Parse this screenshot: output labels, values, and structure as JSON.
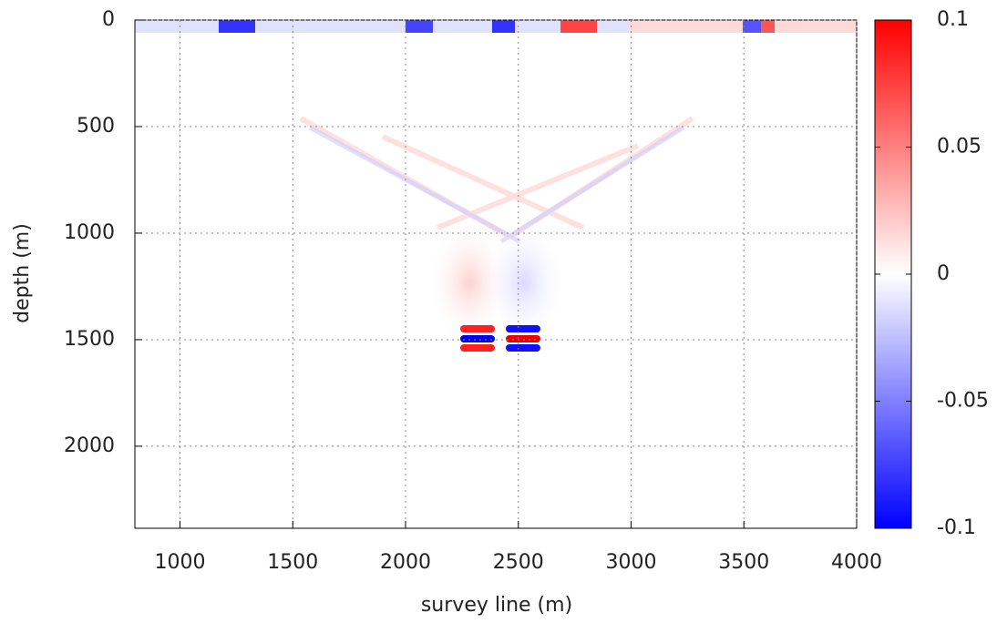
{
  "chart_data": {
    "type": "heatmap",
    "x_label": "survey line (m)",
    "y_label": "depth (m)",
    "xlim": [
      800,
      4000
    ],
    "xticks": [
      1000,
      1500,
      2000,
      2500,
      3000,
      3500,
      4000
    ],
    "ylim": [
      2385,
      0
    ],
    "yticks": [
      0,
      500,
      1000,
      1500,
      2000
    ],
    "grid": true,
    "colorbar": {
      "lim": [
        -0.1,
        0.1
      ],
      "ticks": [
        0.1,
        0.05,
        0,
        -0.05,
        -0.1
      ],
      "colors": [
        "#0000ff",
        "#ffffff",
        "#ff0000"
      ]
    }
  }
}
